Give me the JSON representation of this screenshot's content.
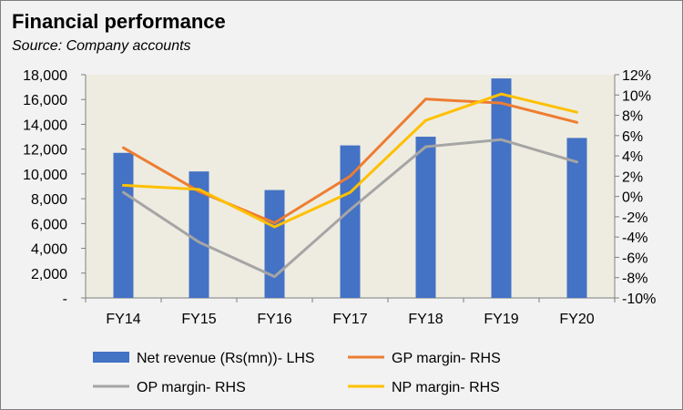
{
  "chart_data": {
    "type": "bar",
    "title": "Financial performance",
    "subtitle": "Source: Company accounts",
    "categories": [
      "FY14",
      "FY15",
      "FY16",
      "FY17",
      "FY18",
      "FY19",
      "FY20"
    ],
    "series": [
      {
        "name": "Net revenue (Rs(mn))- LHS",
        "type": "bar",
        "axis": "left",
        "color": "#4472c4",
        "values": [
          11700,
          10200,
          8700,
          12300,
          13000,
          17700,
          12900
        ]
      },
      {
        "name": "GP margin- RHS",
        "type": "line",
        "axis": "right",
        "color": "#ed7d31",
        "values": [
          4.8,
          0.5,
          -2.6,
          2.0,
          9.6,
          9.2,
          7.3
        ]
      },
      {
        "name": "OP margin- RHS",
        "type": "line",
        "axis": "right",
        "color": "#a5a5a5",
        "values": [
          0.4,
          -4.5,
          -7.9,
          -1.3,
          4.9,
          5.6,
          3.4
        ]
      },
      {
        "name": "NP margin- RHS",
        "type": "line",
        "axis": "right",
        "color": "#ffc000",
        "values": [
          1.1,
          0.7,
          -3.0,
          0.4,
          7.5,
          10.1,
          8.3
        ]
      }
    ],
    "left_axis": {
      "ylim": [
        0,
        18000
      ],
      "ticks": [
        0,
        2000,
        4000,
        6000,
        8000,
        10000,
        12000,
        14000,
        16000,
        18000
      ],
      "tick_labels": [
        "-",
        "2,000",
        "4,000",
        "6,000",
        "8,000",
        "10,000",
        "12,000",
        "14,000",
        "16,000",
        "18,000"
      ]
    },
    "right_axis": {
      "ylim": [
        -10,
        12
      ],
      "ticks": [
        -10,
        -8,
        -6,
        -4,
        -2,
        0,
        2,
        4,
        6,
        8,
        10,
        12
      ],
      "tick_labels": [
        "-10%",
        "-8%",
        "-6%",
        "-4%",
        "-2%",
        "0%",
        "2%",
        "4%",
        "6%",
        "8%",
        "10%",
        "12%"
      ]
    },
    "grid": false,
    "legend_position": "bottom",
    "plot_background": "#eeece1"
  }
}
